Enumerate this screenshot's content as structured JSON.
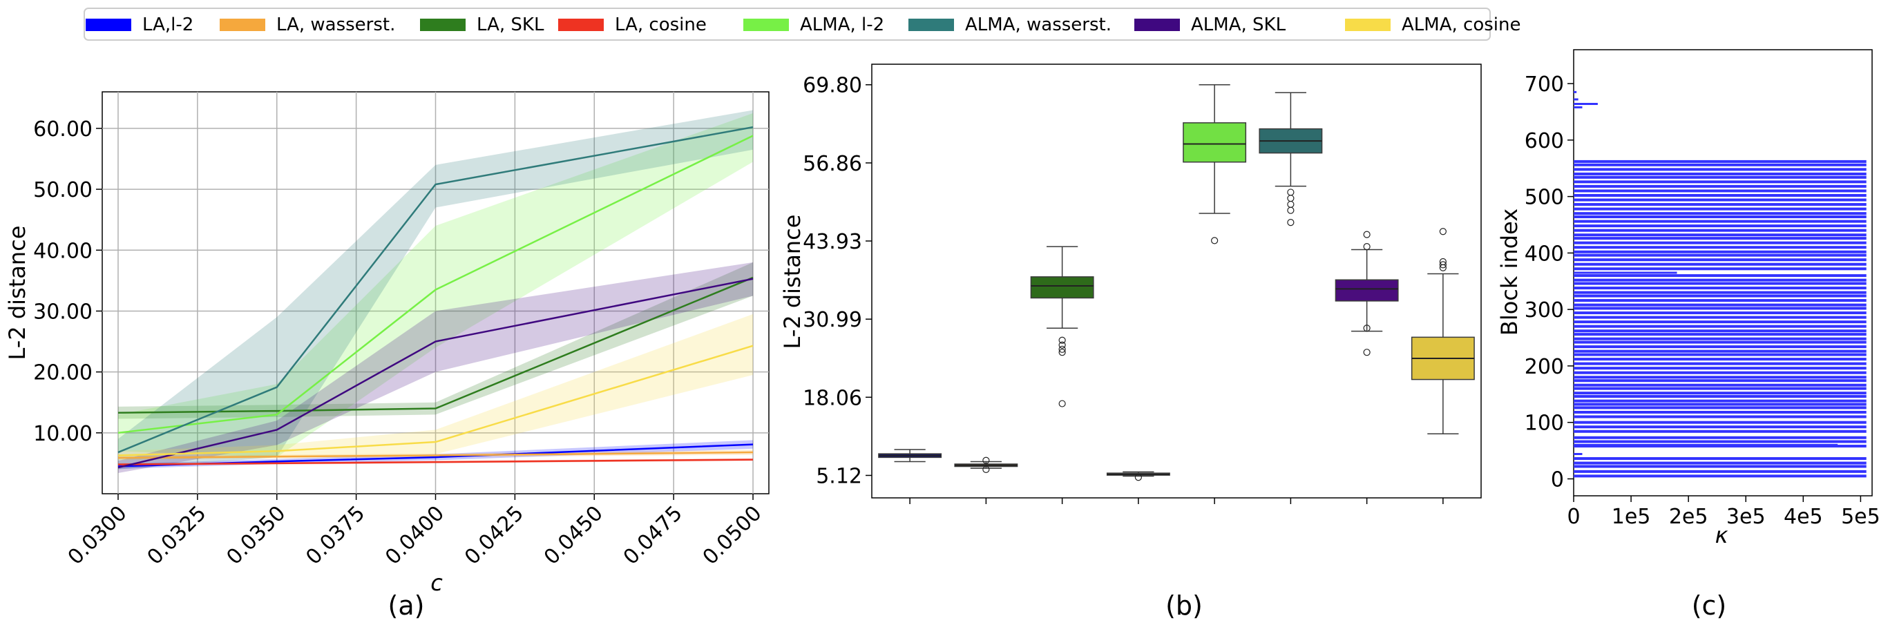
{
  "legend": [
    {
      "label": "LA,l-2",
      "color": "#0000ff"
    },
    {
      "label": "LA, wasserst.",
      "color": "#f5a83d"
    },
    {
      "label": "LA, SKL",
      "color": "#2e7d1e"
    },
    {
      "label": "LA, cosine",
      "color": "#ee3322"
    },
    {
      "label": "ALMA, l-2",
      "color": "#77f046"
    },
    {
      "label": "ALMA, wasserst.",
      "color": "#2f7b7a"
    },
    {
      "label": "ALMA, SKL",
      "color": "#3f0880"
    },
    {
      "label": "ALMA, cosine",
      "color": "#f8dc48"
    }
  ],
  "chart_data": [
    {
      "type": "line",
      "panel_label": "(a)",
      "xlabel": "c",
      "ylabel": "L-2 distance",
      "xlim": [
        0.0295,
        0.0505
      ],
      "ylim": [
        0,
        66
      ],
      "grid": true,
      "x_ticks": [
        "0.0300",
        "0.0325",
        "0.0350",
        "0.0375",
        "0.0400",
        "0.0425",
        "0.0450",
        "0.0475",
        "0.0500"
      ],
      "y_ticks": [
        "10.00",
        "20.00",
        "30.00",
        "40.00",
        "50.00",
        "60.00"
      ],
      "x": [
        0.03,
        0.035,
        0.04,
        0.05
      ],
      "series": [
        {
          "name": "LA,l-2",
          "color": "#0000ff",
          "values": [
            4.5,
            5.3,
            6.0,
            8.1
          ],
          "lower": [
            4.1,
            4.9,
            5.5,
            7.4
          ],
          "upper": [
            4.9,
            5.7,
            6.5,
            8.8
          ]
        },
        {
          "name": "LA, wasserst.",
          "color": "#f5a83d",
          "values": [
            5.9,
            6.1,
            6.3,
            6.8
          ],
          "lower": [
            5.6,
            5.8,
            6.0,
            6.4
          ],
          "upper": [
            6.2,
            6.4,
            6.6,
            7.2
          ]
        },
        {
          "name": "LA, SKL",
          "color": "#2e7d1e",
          "values": [
            13.3,
            13.6,
            14.0,
            35.5
          ],
          "lower": [
            12.3,
            12.6,
            13.0,
            32.5
          ],
          "upper": [
            14.3,
            14.6,
            15.0,
            38.0
          ]
        },
        {
          "name": "LA, cosine",
          "color": "#ee3322",
          "values": [
            4.8,
            5.0,
            5.2,
            5.6
          ],
          "lower": [
            4.6,
            4.8,
            5.0,
            5.4
          ],
          "upper": [
            5.0,
            5.2,
            5.4,
            5.8
          ]
        },
        {
          "name": "ALMA, l-2",
          "color": "#77f046",
          "values": [
            10.0,
            13.0,
            33.5,
            58.8
          ],
          "lower": [
            7.0,
            6.0,
            24.0,
            54.5
          ],
          "upper": [
            13.0,
            18.0,
            44.0,
            62.5
          ]
        },
        {
          "name": "ALMA, wasserst.",
          "color": "#2f7b7a",
          "values": [
            6.8,
            17.5,
            50.8,
            60.2
          ],
          "lower": [
            4.0,
            6.0,
            47.0,
            56.5
          ],
          "upper": [
            9.0,
            29.0,
            54.0,
            63.0
          ]
        },
        {
          "name": "ALMA, SKL",
          "color": "#3f0880",
          "values": [
            4.3,
            10.5,
            25.0,
            35.3
          ],
          "lower": [
            3.4,
            8.0,
            20.0,
            32.5
          ],
          "upper": [
            5.4,
            12.0,
            30.0,
            38.0
          ]
        },
        {
          "name": "ALMA, cosine",
          "color": "#f8dc48",
          "values": [
            6.3,
            7.0,
            8.5,
            24.3
          ],
          "lower": [
            5.5,
            6.0,
            6.5,
            19.5
          ],
          "upper": [
            7.0,
            8.0,
            10.5,
            29.5
          ]
        }
      ]
    },
    {
      "type": "box",
      "panel_label": "(b)",
      "ylabel": "L-2 distance",
      "ylim": [
        1.4,
        73.2
      ],
      "y_ticks": [
        "5.12",
        "18.06",
        "30.99",
        "43.93",
        "56.86",
        "69.80"
      ],
      "boxes": [
        {
          "name": "LA,l-2",
          "color": "#13136e",
          "whislo": 7.4,
          "q1": 8.1,
          "med": 8.4,
          "q3": 8.7,
          "whishi": 9.4,
          "fliers": []
        },
        {
          "name": "LA, wasserst.",
          "color": "#6b4a24",
          "whislo": 6.3,
          "q1": 6.6,
          "med": 6.8,
          "q3": 7.0,
          "whishi": 7.4,
          "fliers": [
            6.1,
            7.6
          ]
        },
        {
          "name": "LA, SKL",
          "color": "#2e6b1a",
          "whislo": 29.5,
          "q1": 34.5,
          "med": 36.5,
          "q3": 38.0,
          "whishi": 43.0,
          "fliers": [
            17.0,
            25.5,
            26.0,
            26.7,
            27.5
          ]
        },
        {
          "name": "LA, cosine",
          "color": "#8a8a8a",
          "whislo": 5.0,
          "q1": 5.2,
          "med": 5.3,
          "q3": 5.5,
          "whishi": 5.7,
          "fliers": [
            4.8
          ]
        },
        {
          "name": "ALMA, l-2",
          "color": "#72e044",
          "whislo": 48.5,
          "q1": 57.0,
          "med": 60.0,
          "q3": 63.5,
          "whishi": 69.8,
          "fliers": [
            44.0
          ]
        },
        {
          "name": "ALMA, wasserst.",
          "color": "#2e6b6c",
          "whislo": 53.0,
          "q1": 58.5,
          "med": 60.5,
          "q3": 62.5,
          "whishi": 68.5,
          "fliers": [
            47.0,
            49.0,
            50.0,
            51.0,
            52.0
          ]
        },
        {
          "name": "ALMA, SKL",
          "color": "#4a0d7c",
          "whislo": 29.0,
          "q1": 34.0,
          "med": 36.0,
          "q3": 37.5,
          "whishi": 42.5,
          "fliers": [
            25.5,
            29.5,
            43.0,
            45.0
          ]
        },
        {
          "name": "ALMA, cosine",
          "color": "#dfc443",
          "whislo": 12.0,
          "q1": 21.0,
          "med": 24.5,
          "q3": 28.0,
          "whishi": 38.5,
          "fliers": [
            39.5,
            40.0,
            40.5,
            45.5
          ]
        }
      ]
    },
    {
      "type": "bar",
      "orientation": "horizontal",
      "panel_label": "(c)",
      "xlabel": "κ",
      "ylabel": "Block index",
      "xlim": [
        0,
        520000
      ],
      "ylim": [
        -30,
        760
      ],
      "x_ticks": [
        "0",
        "1e5",
        "2e5",
        "3e5",
        "4e5",
        "5e5"
      ],
      "y_ticks": [
        "0",
        "100",
        "200",
        "300",
        "400",
        "500",
        "600",
        "700"
      ],
      "color": "#3333ff",
      "full_bar_value": 510000,
      "full_bar_blocks": [
        5,
        13,
        22,
        28,
        36,
        58,
        66,
        73,
        84,
        92,
        100,
        110,
        118,
        126,
        132,
        138,
        146,
        152,
        160,
        166,
        174,
        180,
        188,
        196,
        204,
        212,
        220,
        226,
        234,
        242,
        248,
        256,
        262,
        270,
        278,
        286,
        294,
        302,
        308,
        316,
        324,
        330,
        338,
        346,
        352,
        360,
        372,
        380,
        388,
        396,
        402,
        410,
        418,
        426,
        432,
        440,
        448,
        456,
        464,
        470,
        478,
        486,
        494,
        502,
        510,
        518,
        526,
        534,
        540,
        548,
        556,
        562
      ],
      "partial_bars": [
        {
          "block": 664,
          "value": 42000
        },
        {
          "block": 658,
          "value": 15000
        },
        {
          "block": 672,
          "value": 8000
        },
        {
          "block": 685,
          "value": 5000
        },
        {
          "block": 60,
          "value": 460000
        },
        {
          "block": 44,
          "value": 15000
        },
        {
          "block": 365,
          "value": 180000
        }
      ]
    }
  ]
}
